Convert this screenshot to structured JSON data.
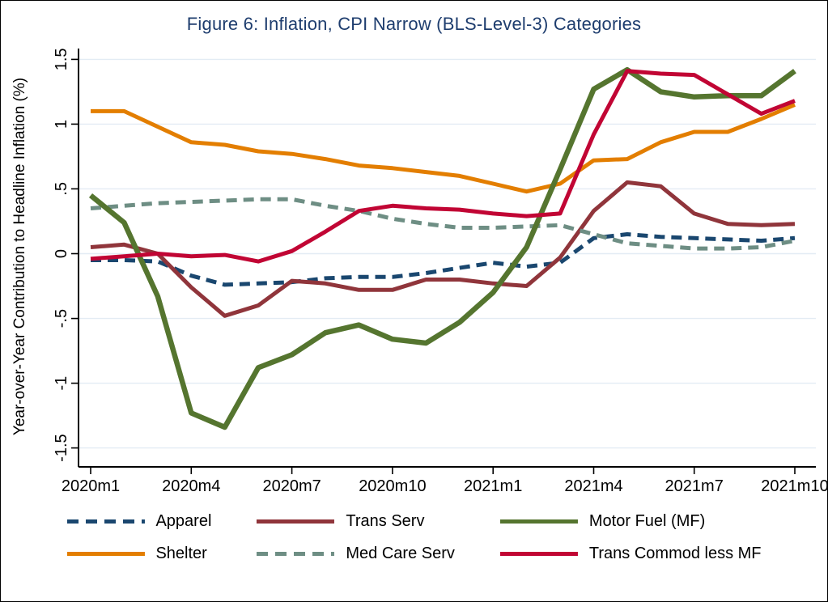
{
  "figure": {
    "title": "Figure 6: Inflation, CPI Narrow (BLS-Level-3) Categories",
    "y_axis_title": "Year-over-Year Contribution to Headline Inflation (%)"
  },
  "colors": {
    "title_text": "#1e3d6e",
    "axis": "#000000",
    "grid": "#e3ecf4",
    "background": "#ffffff",
    "border": "#000000"
  },
  "chart_data": {
    "type": "line",
    "title": "Figure 6: Inflation, CPI Narrow (BLS-Level-3) Categories",
    "xlabel": "",
    "ylabel": "Year-over-Year Contribution to Headline Inflation (%)",
    "ylim": [
      -1.5,
      1.5
    ],
    "grid": true,
    "legend_position": "bottom",
    "yticks": [
      1.5,
      1,
      0.5,
      0,
      -0.5,
      -1,
      -1.5
    ],
    "ytick_labels": [
      "1.5",
      "1",
      ".5",
      "0",
      "-.5",
      "-1",
      "-1.5"
    ],
    "x": [
      "2020m1",
      "2020m2",
      "2020m3",
      "2020m4",
      "2020m5",
      "2020m6",
      "2020m7",
      "2020m8",
      "2020m9",
      "2020m10",
      "2020m11",
      "2020m12",
      "2021m1",
      "2021m2",
      "2021m3",
      "2021m4",
      "2021m5",
      "2021m6",
      "2021m7",
      "2021m8",
      "2021m9",
      "2021m10"
    ],
    "xtick_shown": [
      "2020m1",
      "2020m4",
      "2020m7",
      "2020m10",
      "2021m1",
      "2021m4",
      "2021m7",
      "2021m10"
    ],
    "series": [
      {
        "name": "Apparel",
        "color": "#1a476f",
        "dash": true,
        "values": [
          -0.05,
          -0.05,
          -0.06,
          -0.17,
          -0.24,
          -0.23,
          -0.22,
          -0.19,
          -0.18,
          -0.18,
          -0.15,
          -0.11,
          -0.07,
          -0.1,
          -0.07,
          0.12,
          0.15,
          0.13,
          0.12,
          0.11,
          0.1,
          0.12
        ]
      },
      {
        "name": "Shelter",
        "color": "#e37e00",
        "dash": false,
        "values": [
          1.1,
          1.1,
          0.98,
          0.86,
          0.84,
          0.79,
          0.77,
          0.73,
          0.68,
          0.66,
          0.63,
          0.6,
          0.54,
          0.48,
          0.54,
          0.72,
          0.73,
          0.86,
          0.94,
          0.94,
          1.04,
          1.15
        ]
      },
      {
        "name": "Trans Serv",
        "color": "#90353b",
        "dash": false,
        "values": [
          0.05,
          0.07,
          0.0,
          -0.26,
          -0.48,
          -0.4,
          -0.21,
          -0.23,
          -0.28,
          -0.28,
          -0.2,
          -0.2,
          -0.23,
          -0.25,
          -0.03,
          0.33,
          0.55,
          0.52,
          0.31,
          0.23,
          0.22,
          0.23
        ]
      },
      {
        "name": "Med Care Serv",
        "color": "#6e8e84",
        "dash": true,
        "values": [
          0.35,
          0.37,
          0.39,
          0.4,
          0.41,
          0.42,
          0.42,
          0.37,
          0.33,
          0.27,
          0.23,
          0.2,
          0.2,
          0.21,
          0.22,
          0.15,
          0.08,
          0.06,
          0.04,
          0.04,
          0.05,
          0.1
        ]
      },
      {
        "name": "Motor Fuel (MF)",
        "color": "#55752f",
        "dash": false,
        "values": [
          0.45,
          0.24,
          -0.33,
          -1.23,
          -1.34,
          -0.88,
          -0.78,
          -0.61,
          -0.55,
          -0.66,
          -0.69,
          -0.53,
          -0.3,
          0.05,
          0.65,
          1.27,
          1.42,
          1.25,
          1.21,
          1.22,
          1.22,
          1.41
        ]
      },
      {
        "name": "Trans Commod less MF",
        "color": "#c10534",
        "dash": false,
        "values": [
          -0.04,
          -0.02,
          0.0,
          -0.02,
          -0.01,
          -0.06,
          0.02,
          0.17,
          0.33,
          0.37,
          0.35,
          0.34,
          0.31,
          0.29,
          0.31,
          0.92,
          1.41,
          1.39,
          1.38,
          1.23,
          1.08,
          1.18
        ]
      }
    ]
  }
}
